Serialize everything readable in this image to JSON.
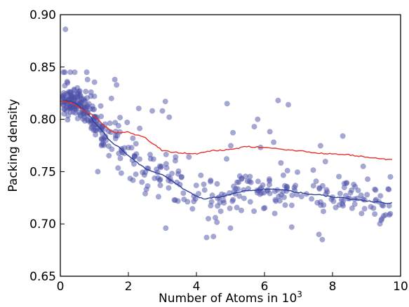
{
  "chart_data": {
    "type": "scatter",
    "title": "",
    "xlabel": "Number of Atoms in 10",
    "xlabel_superscript": "3",
    "ylabel": "Packing density",
    "xlim": [
      0,
      10
    ],
    "ylim": [
      0.65,
      0.9
    ],
    "x_ticks": [
      0,
      2,
      4,
      6,
      8,
      10
    ],
    "x_tick_labels": [
      "0",
      "2",
      "4",
      "6",
      "8",
      "10"
    ],
    "y_ticks": [
      0.65,
      0.7,
      0.75,
      0.8,
      0.85,
      0.9
    ],
    "y_tick_labels": [
      "0.65",
      "0.70",
      "0.75",
      "0.80",
      "0.85",
      "0.90"
    ],
    "grid": false,
    "legend": "none",
    "colors": {
      "points": "#4b4fa8",
      "blue_line": "#2c3e9c",
      "red_line": "#e8302a"
    },
    "scatter": {
      "seed": 7,
      "count": 430,
      "note_values": [
        [
          0.15,
          0.886
        ],
        [
          0.1,
          0.823
        ],
        [
          0.2,
          0.836
        ],
        [
          0.3,
          0.826
        ],
        [
          0.4,
          0.815
        ],
        [
          0.5,
          0.83
        ],
        [
          0.6,
          0.822
        ],
        [
          0.7,
          0.818
        ],
        [
          0.8,
          0.838
        ],
        [
          0.9,
          0.826
        ],
        [
          1.0,
          0.822
        ],
        [
          1.6,
          0.838
        ],
        [
          1.1,
          0.75
        ],
        [
          1.5,
          0.82
        ],
        [
          2.0,
          0.773
        ],
        [
          2.7,
          0.808
        ],
        [
          3.0,
          0.808
        ],
        [
          3.2,
          0.802
        ],
        [
          4.9,
          0.815
        ],
        [
          5.8,
          0.8
        ],
        [
          5.7,
          0.793
        ],
        [
          6.4,
          0.818
        ],
        [
          6.7,
          0.814
        ],
        [
          8.3,
          0.784
        ],
        [
          8.9,
          0.755
        ],
        [
          9.7,
          0.745
        ],
        [
          5.0,
          0.696
        ],
        [
          6.3,
          0.71
        ],
        [
          6.8,
          0.697
        ],
        [
          7.6,
          0.69
        ],
        [
          7.7,
          0.685
        ],
        [
          4.3,
          0.687
        ],
        [
          4.5,
          0.688
        ],
        [
          3.1,
          0.696
        ]
      ]
    },
    "series": [
      {
        "color": "#2c3e9c",
        "x": [
          0.0,
          0.3,
          0.5,
          0.8,
          1.0,
          1.2,
          1.5,
          1.8,
          2.0,
          2.5,
          3.0,
          3.5,
          3.9,
          4.2,
          4.5,
          5.0,
          5.5,
          6.0,
          6.5,
          7.0,
          7.5,
          8.0,
          8.5,
          9.0,
          9.5,
          9.75
        ],
        "values": [
          0.818,
          0.817,
          0.814,
          0.806,
          0.797,
          0.79,
          0.778,
          0.772,
          0.765,
          0.753,
          0.747,
          0.736,
          0.728,
          0.724,
          0.725,
          0.728,
          0.732,
          0.733,
          0.733,
          0.73,
          0.728,
          0.726,
          0.724,
          0.722,
          0.72,
          0.72
        ]
      },
      {
        "color": "#e8302a",
        "x": [
          0.0,
          0.4,
          0.6,
          1.0,
          1.3,
          1.6,
          2.0,
          2.5,
          3.0,
          3.5,
          4.0,
          4.5,
          5.0,
          5.5,
          6.0,
          6.5,
          7.0,
          7.5,
          8.0,
          8.5,
          9.0,
          9.5,
          9.75
        ],
        "values": [
          0.818,
          0.815,
          0.81,
          0.803,
          0.793,
          0.787,
          0.788,
          0.782,
          0.77,
          0.768,
          0.767,
          0.77,
          0.771,
          0.774,
          0.773,
          0.771,
          0.77,
          0.768,
          0.767,
          0.766,
          0.764,
          0.762,
          0.761
        ]
      }
    ]
  }
}
